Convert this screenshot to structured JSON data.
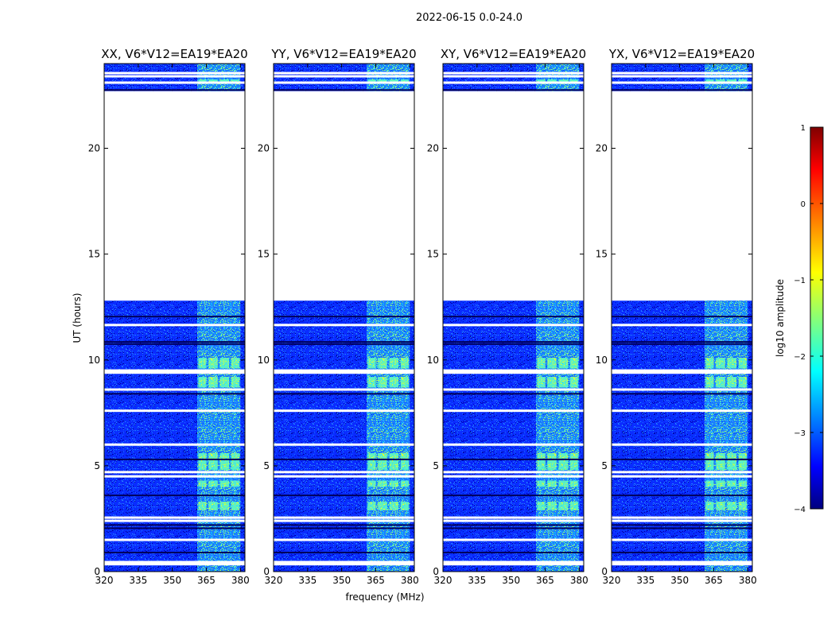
{
  "chart_data": {
    "type": "heatmap",
    "title": "2022-06-15 0.0-24.0",
    "xlabel": "frequency (MHz)",
    "ylabel": "UT (hours)",
    "xlim": [
      320,
      382
    ],
    "ylim": [
      0,
      24
    ],
    "x_ticks": [
      320,
      335,
      350,
      365,
      380
    ],
    "y_ticks": [
      0,
      5,
      10,
      15,
      20
    ],
    "panels": [
      {
        "title": "XX, V6*V12=EA19*EA20",
        "polarization": "XX"
      },
      {
        "title": "YY, V6*V12=EA19*EA20",
        "polarization": "YY"
      },
      {
        "title": "XY, V6*V12=EA19*EA20",
        "polarization": "XY"
      },
      {
        "title": "YX, V6*V12=EA19*EA20",
        "polarization": "YX"
      }
    ],
    "data_coverage_hours": [
      [
        0,
        12.8
      ],
      [
        22.7,
        24.0
      ]
    ],
    "no_data_hours": [
      12.8,
      22.7
    ],
    "rfi_band_mhz": [
      361,
      380
    ],
    "colorbar": {
      "label": "log10 amplitude",
      "range": [
        -4,
        1
      ],
      "ticks": [
        "1",
        "0",
        "−1",
        "−2",
        "−3",
        "−4"
      ],
      "colormap": "jet"
    }
  }
}
